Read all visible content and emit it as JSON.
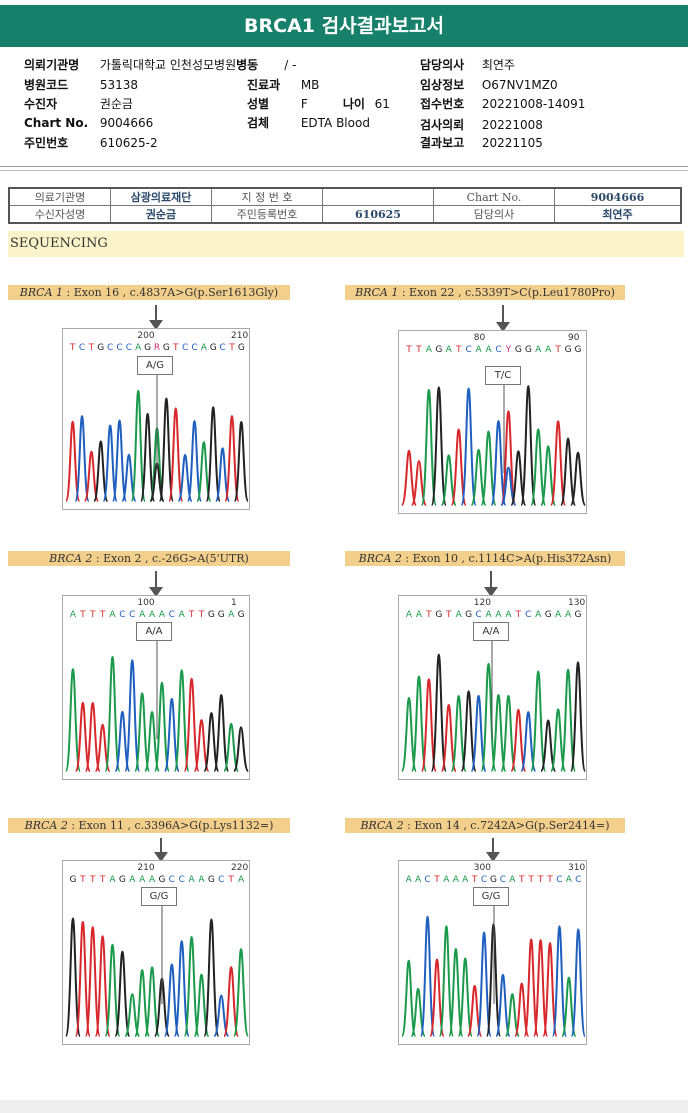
{
  "title": "BRCA1 검사결과보고서",
  "info": {
    "institution_label": "의뢰기관명",
    "institution": "가톨릭대학교 인천성모병원",
    "ward_label": "병동",
    "ward": "/ -",
    "doctor_label": "담당의사",
    "doctor": "최연주",
    "hospital_code_label": "병원코드",
    "hospital_code": "53138",
    "dept_label": "진료과",
    "dept": "MB",
    "clinical_label": "임상정보",
    "clinical": "O67NV1MZ0",
    "patient_label": "수진자",
    "patient": "권순금",
    "sex_label": "성별",
    "sex": "F",
    "age_label": "나이",
    "age": "61",
    "accession_label": "접수번호",
    "accession": "20221008-14091",
    "chart_label": "Chart No.",
    "chart": "9004666",
    "specimen_label": "검체",
    "specimen": "EDTA Blood",
    "request_label": "검사의뢰",
    "request": "20221008",
    "id_label": "주민번호",
    "id": "610625-2",
    "report_label": "결과보고",
    "report": "20221105"
  },
  "table": {
    "r1": [
      "의료기관명",
      "삼광의료재단",
      "지 정 번 호",
      "",
      "Chart No.",
      "9004666"
    ],
    "r2": [
      "수신자성명",
      "권순금",
      "주민등록번호",
      "610625",
      "담당의사",
      "최연주"
    ]
  },
  "section": "SEQUENCING",
  "panels": [
    {
      "gene": "BRCA 1",
      "desc": " : Exon 16 , c.4837A>G(p.Ser1613Gly)",
      "seq": "TCTGCCCAGRGTCCAGCTG",
      "n1": "200",
      "n2": "210",
      "gt": "A/G"
    },
    {
      "gene": "BRCA 1",
      "desc": " : Exon 22 , c.5339T>C(p.Leu1780Pro)",
      "seq": "TTAGATCAACYGGAATGG",
      "n1": "80",
      "n2": "90",
      "gt": "T/C"
    },
    {
      "gene": "BRCA 2",
      "desc": " : Exon 2 , c.-26G>A(5'UTR)",
      "seq": "ATTTACCAAACATTGGAG",
      "n1": "100",
      "n2": "1",
      "gt": "A/A"
    },
    {
      "gene": "BRCA 2",
      "desc": " : Exon 10 , c.1114C>A(p.His372Asn)",
      "seq": "AATGTAGCAAATCAGAAG",
      "n1": "120",
      "n2": "130",
      "gt": "A/A"
    },
    {
      "gene": "BRCA 2",
      "desc": " : Exon 11 , c.3396A>G(p.Lys1132=)",
      "seq": "GTTTAGAAAGCCAAGCTA",
      "n1": "210",
      "n2": "220",
      "gt": "G/G"
    },
    {
      "gene": "BRCA 2",
      "desc": " : Exon 14 , c.7242A>G(p.Ser2414=)",
      "seq": "AACTAAATCGCATTTTCAC",
      "n1": "300",
      "n2": "310",
      "gt": "G/G"
    }
  ],
  "colors": {
    "A": "#1a9a4a",
    "T": "#d8282c",
    "G": "#222222",
    "C": "#1f5fbf",
    "Y": "#d0307a",
    "R": "#d0307a",
    "header": "#17806b"
  }
}
